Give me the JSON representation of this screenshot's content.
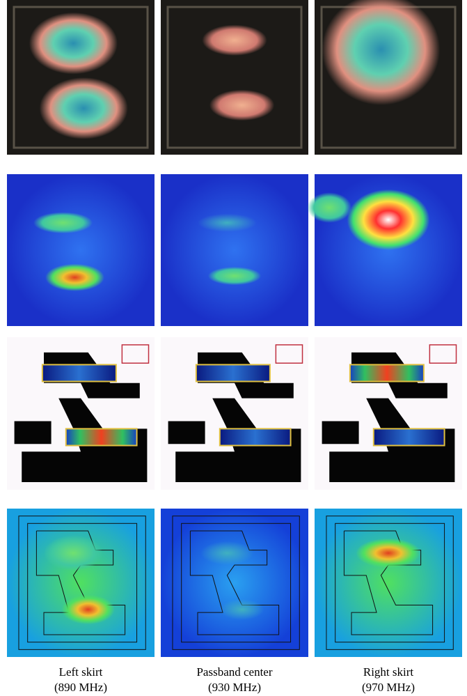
{
  "captions": [
    {
      "label": "Left skirt",
      "frequency": "(890 MHz)"
    },
    {
      "label": "Passband center",
      "frequency": "(930 MHz)"
    },
    {
      "label": "Right skirt",
      "frequency": "(970 MHz)"
    }
  ]
}
